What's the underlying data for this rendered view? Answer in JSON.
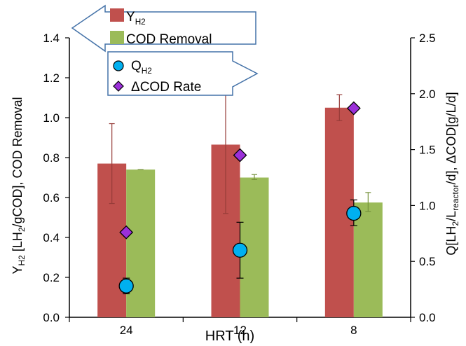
{
  "chart_data": {
    "type": "bar",
    "categories": [
      "24",
      "12",
      "8"
    ],
    "xlabel": "HRT (h)",
    "left_axis": {
      "label_parts": [
        "Y",
        "H2",
        " [LH",
        "2",
        "/gCOD], COD Removal"
      ],
      "ylim": [
        0,
        1.4
      ],
      "ticks": [
        "0.0",
        "0.2",
        "0.4",
        "0.6",
        "0.8",
        "1.0",
        "1.2",
        "1.4"
      ]
    },
    "right_axis": {
      "label_parts": [
        "Q[LH",
        "2",
        "/L",
        "reactor",
        "/d], ΔCOD[g/L/d]"
      ],
      "ylim": [
        0,
        2.5
      ],
      "ticks": [
        "0.0",
        "0.5",
        "1.0",
        "1.5",
        "2.0",
        "2.5"
      ]
    },
    "series": [
      {
        "key": "yh2",
        "name": "Y",
        "name_sub": "H2",
        "kind": "bar",
        "axis": "left",
        "color": "#c0504d",
        "values": [
          0.77,
          0.865,
          1.05
        ],
        "err_low": [
          0.57,
          0.52,
          0.985
        ],
        "err_high": [
          0.97,
          1.215,
          1.115
        ]
      },
      {
        "key": "cod",
        "name": "COD Removal",
        "kind": "bar",
        "axis": "left",
        "color": "#9bbb59",
        "values": [
          0.74,
          0.7,
          0.575
        ],
        "err_low": [
          0.74,
          0.69,
          0.53
        ],
        "err_high": [
          0.74,
          0.715,
          0.625
        ]
      },
      {
        "key": "qh2",
        "name": "Q",
        "name_sub": "H2",
        "kind": "circle",
        "axis": "right",
        "color": "#00b0f0",
        "values": [
          0.28,
          0.6,
          0.93
        ],
        "err_low": [
          0.21,
          0.35,
          0.82
        ],
        "err_high": [
          0.35,
          0.85,
          1.05
        ]
      },
      {
        "key": "dcod",
        "name": "ΔCOD Rate",
        "kind": "diamond",
        "axis": "right",
        "color": "#9b30d9",
        "values": [
          0.76,
          1.45,
          1.87
        ]
      }
    ],
    "legend_arrows": {
      "left_group": "left",
      "right_group": "right"
    },
    "grid": false
  }
}
